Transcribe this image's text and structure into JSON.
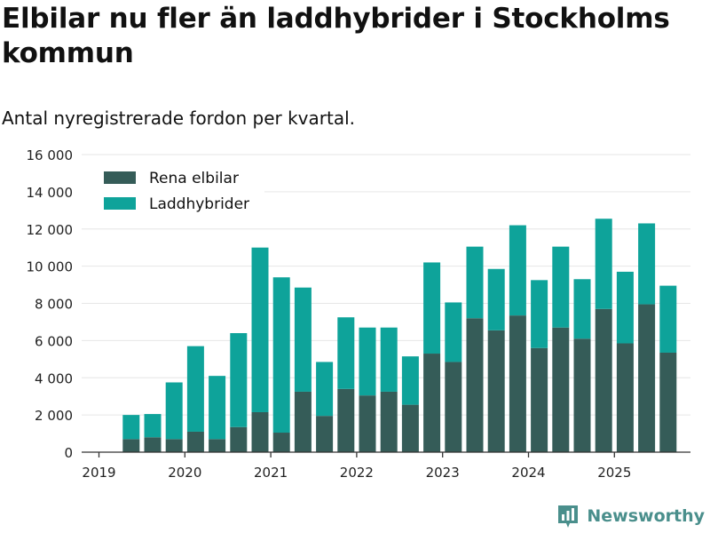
{
  "header": {
    "title": "Elbilar nu fler än laddhybrider i Stockholms kommun",
    "subtitle": "Antal nyregistrerade fordon per kvartal."
  },
  "brand": {
    "name": "Newsworthy"
  },
  "colors": {
    "electric": "#355c58",
    "hybrid": "#0ea39a",
    "grid": "#e6e6e6",
    "axis": "#333333",
    "brand": "#4a8f8c"
  },
  "chart_data": {
    "type": "bar",
    "stacked": true,
    "title": "Elbilar nu fler än laddhybrider i Stockholms kommun",
    "subtitle": "Antal nyregistrerade fordon per kvartal.",
    "xlabel": "",
    "ylabel": "",
    "ylim": [
      0,
      16000
    ],
    "yticks": [
      0,
      2000,
      4000,
      6000,
      8000,
      10000,
      12000,
      14000,
      16000
    ],
    "ytick_labels": [
      "0",
      "2 000",
      "4 000",
      "6 000",
      "8 000",
      "10 000",
      "12 000",
      "14 000",
      "16 000"
    ],
    "xticks": [
      "2019",
      "2020",
      "2021",
      "2022",
      "2023",
      "2024",
      "2025"
    ],
    "grid": true,
    "legend_position": "top-left",
    "categories": [
      "2019 Q2",
      "2019 Q3",
      "2019 Q4",
      "2020 Q1",
      "2020 Q2",
      "2020 Q3",
      "2020 Q4",
      "2021 Q1",
      "2021 Q2",
      "2021 Q3",
      "2021 Q4",
      "2022 Q1",
      "2022 Q2",
      "2022 Q3",
      "2022 Q4",
      "2023 Q1",
      "2023 Q2",
      "2023 Q3",
      "2023 Q4",
      "2024 Q1",
      "2024 Q2",
      "2024 Q3",
      "2024 Q4",
      "2025 Q1",
      "2025 Q2",
      "2025 Q3"
    ],
    "series": [
      {
        "name": "Rena elbilar",
        "values": [
          700,
          800,
          700,
          1100,
          700,
          1350,
          2150,
          1050,
          3250,
          1950,
          3400,
          3050,
          3250,
          2550,
          5300,
          4850,
          7200,
          6550,
          7350,
          5600,
          6700,
          6100,
          7700,
          5850,
          7950,
          5350
        ]
      },
      {
        "name": "Laddhybrider",
        "values": [
          1300,
          1250,
          3050,
          4600,
          3400,
          5050,
          8850,
          8350,
          5600,
          2900,
          3850,
          3650,
          3450,
          2600,
          4900,
          3200,
          3850,
          3300,
          4850,
          3650,
          4350,
          3200,
          4850,
          3850,
          4350,
          3600
        ]
      }
    ]
  }
}
